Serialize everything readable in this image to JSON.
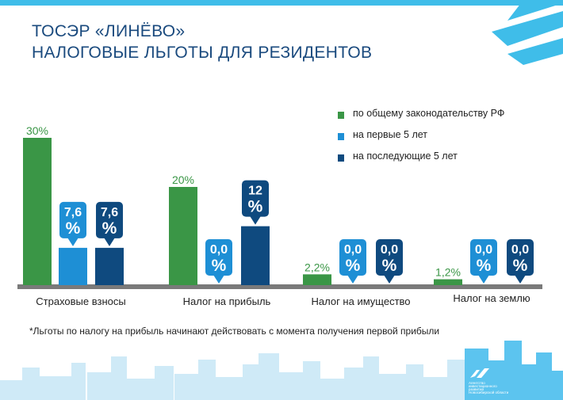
{
  "title": {
    "line1": "ТОСЭР «ЛИНЁВО»",
    "line2": "НАЛОГОВЫЕ ЛЬГОТЫ ДЛЯ РЕЗИДЕНТОВ"
  },
  "footnote": "*Льготы по налогу на прибыль начинают действовать с момента получения первой прибыли",
  "logo": {
    "line1": "Агентство",
    "line2": "инвестиционного",
    "line3": "развития",
    "line4": "Новосибирской области"
  },
  "colors": {
    "general": "#3a9646",
    "first5": "#1e8fd5",
    "next5": "#0f4a7f",
    "accent": "#3fbde9",
    "title": "#1a4a7e",
    "baseline": "#7a7a7a"
  },
  "chart_data": {
    "type": "bar",
    "categories": [
      "Страховые взносы",
      "Налог на прибыль",
      "Налог на имущество",
      "Налог на землю"
    ],
    "series": [
      {
        "name": "по общему законодательству РФ",
        "values": [
          30,
          20,
          2.2,
          1.2
        ],
        "labels": [
          "30%",
          "20%",
          "2,2%",
          "1,2%"
        ]
      },
      {
        "name": "на первые 5 лет",
        "values": [
          7.6,
          0,
          0,
          0
        ],
        "labels": [
          "7,6",
          "0,0",
          "0,0",
          "0,0"
        ]
      },
      {
        "name": "на последующие 5 лет",
        "values": [
          7.6,
          12,
          0,
          0
        ],
        "labels": [
          "7,6",
          "12",
          "0,0",
          "0,0"
        ]
      }
    ],
    "percent_sign": "%",
    "ylim": [
      0,
      30
    ],
    "legend": "top-right",
    "grid": false
  }
}
